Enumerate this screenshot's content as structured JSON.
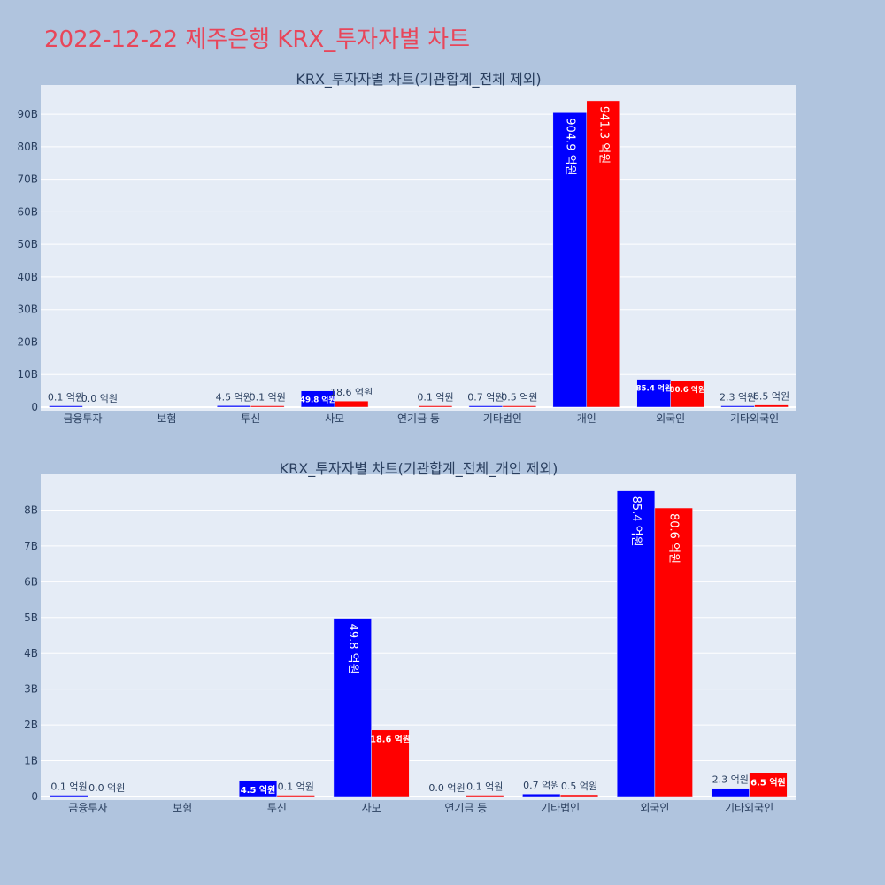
{
  "page_title": "2022-12-22 제주은행 KRX_투자자별 차트",
  "colors": {
    "bg": "#b0c4de",
    "plot_bg": "#e5ecf6",
    "series_1": "#0000ff",
    "series_2": "#ff0000",
    "title": "#e8465a",
    "grid": "#ffffff"
  },
  "chart_data": [
    {
      "type": "bar",
      "title": "KRX_투자자별 차트(기관합계_전체 제외)",
      "categories": [
        "금융투자",
        "보험",
        "투신",
        "사모",
        "연기금 등",
        "기타법인",
        "개인",
        "외국인",
        "기타외국인"
      ],
      "y_ticks": [
        "0",
        "10B",
        "20B",
        "30B",
        "40B",
        "50B",
        "60B",
        "70B",
        "80B",
        "90B"
      ],
      "ylim": [
        0,
        99000000000
      ],
      "grid": true,
      "series": [
        {
          "values": [
            10000000,
            0,
            450000000,
            4980000000,
            0,
            70000000,
            90490000000,
            8540000000,
            230000000
          ],
          "labels": [
            "0.1 억원",
            "",
            "4.5 억원",
            "49.8 억원",
            "",
            "0.7 억원",
            "904.9 억원",
            "85.4 억원",
            "2.3 억원"
          ]
        },
        {
          "values": [
            0,
            0,
            10000000,
            1860000000,
            10000000,
            50000000,
            94130000000,
            8060000000,
            650000000
          ],
          "labels": [
            "0.0 억원",
            "",
            "0.1 억원",
            "18.6 억원",
            "0.1 억원",
            "0.5 억원",
            "941.3 억원",
            "80.6 억원",
            "6.5 억원"
          ]
        }
      ]
    },
    {
      "type": "bar",
      "title": "KRX_투자자별 차트(기관합계_전체_개인 제외)",
      "categories": [
        "금융투자",
        "보험",
        "투신",
        "사모",
        "연기금 등",
        "기타법인",
        "외국인",
        "기타외국인"
      ],
      "y_ticks": [
        "0",
        "1B",
        "2B",
        "3B",
        "4B",
        "5B",
        "6B",
        "7B",
        "8B"
      ],
      "ylim": [
        0,
        9000000000
      ],
      "grid": true,
      "series": [
        {
          "values": [
            10000000,
            0,
            450000000,
            4980000000,
            0,
            70000000,
            8540000000,
            230000000
          ],
          "labels": [
            "0.1 억원",
            "",
            "4.5 억원",
            "49.8 억원",
            "0.0 억원",
            "0.7 억원",
            "85.4 억원",
            "2.3 억원"
          ]
        },
        {
          "values": [
            0,
            0,
            10000000,
            1860000000,
            10000000,
            50000000,
            8060000000,
            650000000
          ],
          "labels": [
            "0.0 억원",
            "",
            "0.1 억원",
            "18.6 억원",
            "0.1 억원",
            "0.5 억원",
            "80.6 억원",
            "6.5 억원"
          ]
        }
      ]
    }
  ]
}
